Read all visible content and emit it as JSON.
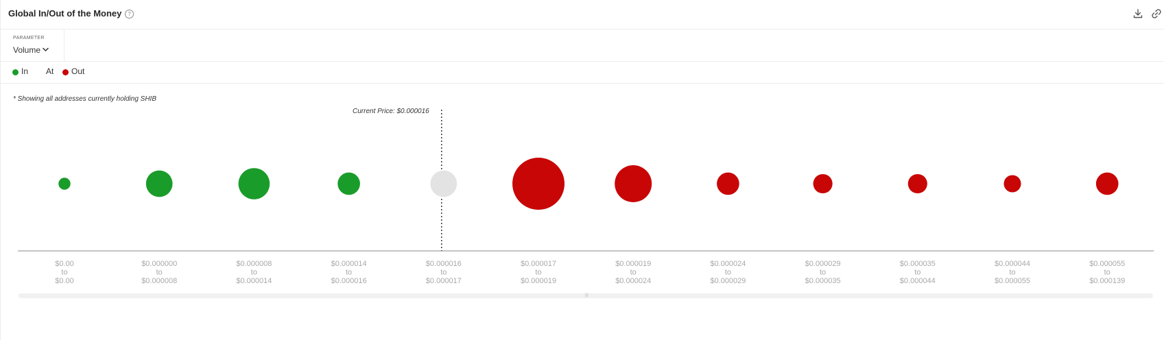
{
  "header": {
    "title": "Global In/Out of the Money",
    "help_icon": "question-circle-icon",
    "download_icon": "download-icon",
    "link_icon": "link-icon"
  },
  "parameter": {
    "label": "PARAMETER",
    "value": "Volume"
  },
  "legend": {
    "in_label": "In",
    "at_label": "At",
    "out_label": "Out"
  },
  "note": "* Showing all addresses currently holding SHIB",
  "current_price_label": "Current Price: $0.000016",
  "colors": {
    "in": "#1a9c2a",
    "at": "#e3e3e3",
    "out": "#c80606",
    "axis": "#888888",
    "tick_text": "#a8a8a8"
  },
  "chart_data": {
    "type": "bubble",
    "title": "Global In/Out of the Money",
    "x_label": "",
    "y_label": "",
    "current_price": "$0.000016",
    "current_price_bucket_index": 4,
    "ranges": [
      {
        "from": "$0.00",
        "to": "$0.00",
        "status": "in",
        "relative_size": 0.23
      },
      {
        "from": "$0.000000",
        "to": "$0.000008",
        "status": "in",
        "relative_size": 0.51
      },
      {
        "from": "$0.000008",
        "to": "$0.000014",
        "status": "in",
        "relative_size": 0.6
      },
      {
        "from": "$0.000014",
        "to": "$0.000016",
        "status": "in",
        "relative_size": 0.43
      },
      {
        "from": "$0.000016",
        "to": "$0.000017",
        "status": "at",
        "relative_size": 0.51
      },
      {
        "from": "$0.000017",
        "to": "$0.000019",
        "status": "out",
        "relative_size": 1.0
      },
      {
        "from": "$0.000019",
        "to": "$0.000024",
        "status": "out",
        "relative_size": 0.71
      },
      {
        "from": "$0.000024",
        "to": "$0.000029",
        "status": "out",
        "relative_size": 0.43
      },
      {
        "from": "$0.000029",
        "to": "$0.000035",
        "status": "out",
        "relative_size": 0.37
      },
      {
        "from": "$0.000035",
        "to": "$0.000044",
        "status": "out",
        "relative_size": 0.37
      },
      {
        "from": "$0.000044",
        "to": "$0.000055",
        "status": "out",
        "relative_size": 0.33
      },
      {
        "from": "$0.000055",
        "to": "$0.000139",
        "status": "out",
        "relative_size": 0.43
      }
    ],
    "range_connector": "to"
  }
}
